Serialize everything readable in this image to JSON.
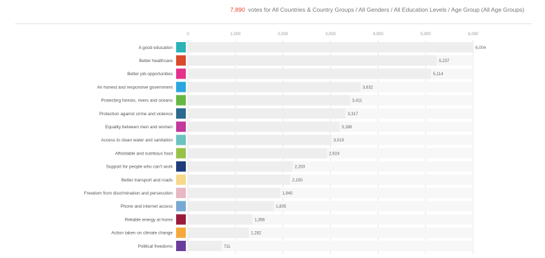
{
  "header": {
    "vote_count": "7,890",
    "title_text": "votes for All Countries & Country Groups / All Genders / All Education Levels / Age Group (All Age Groups)"
  },
  "chart_data": {
    "type": "bar",
    "orientation": "horizontal",
    "xlim": [
      0,
      6000
    ],
    "x_ticks": [
      0,
      1000,
      2000,
      3000,
      4000,
      5000,
      6000
    ],
    "x_tick_labels": [
      "0",
      "1,000",
      "2,000",
      "3,000",
      "4,000",
      "5,000",
      "6,000"
    ],
    "grid": true,
    "bar_background": "#eeeeee",
    "categories": [
      "A good education",
      "Better healthcare",
      "Better job opportunities",
      "An honest and responsive government",
      "Protecting forests, rivers and oceans",
      "Protection against crime and violence",
      "Equality between men and women",
      "Access to clean water and sanitation",
      "Affordable and nutritious food",
      "Support for people who can't work",
      "Better transport and roads",
      "Freedom from discrimination and persecution",
      "Phone and internet access",
      "Reliable energy at home",
      "Action taken on climate change",
      "Political freedoms"
    ],
    "values": [
      6004,
      5237,
      5114,
      3632,
      3411,
      3317,
      3188,
      3019,
      2924,
      2203,
      2150,
      1940,
      1805,
      1356,
      1282,
      711
    ],
    "value_labels": [
      "6,004",
      "5,237",
      "5,114",
      "3,632",
      "3,411",
      "3,317",
      "3,188",
      "3,019",
      "2,924",
      "2,203",
      "2,150",
      "1,940",
      "1,805",
      "1,356",
      "1,282",
      "711"
    ],
    "colors": [
      "#2bb3b8",
      "#d94a2b",
      "#e4318b",
      "#2aa7df",
      "#67b843",
      "#2c6a8e",
      "#c23a9b",
      "#6dc3c0",
      "#97c24a",
      "#1f3d7a",
      "#f6d98a",
      "#e8b8c4",
      "#78a8d2",
      "#9a1c3d",
      "#f4a93a",
      "#6a3d9a"
    ]
  }
}
